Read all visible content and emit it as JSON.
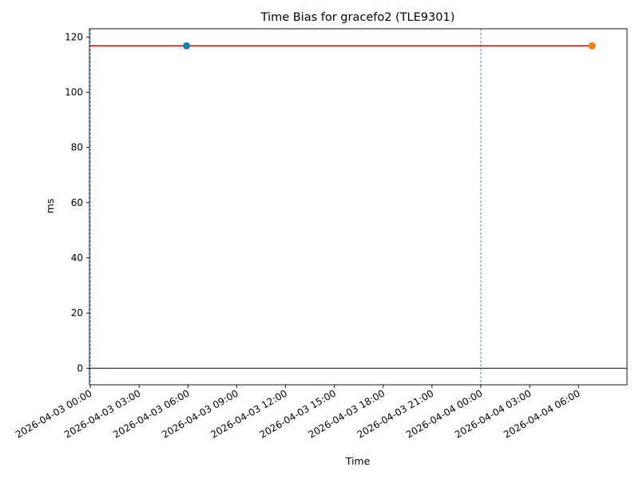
{
  "chart_data": {
    "type": "line",
    "title": "Time Bias for gracefo2 (TLE9301)",
    "xlabel": "Time",
    "ylabel": "ms",
    "xlim": [
      "2026-04-02 23:57",
      "2026-04-04 08:59"
    ],
    "ylim": [
      -6,
      123
    ],
    "x_ticks": [
      "2026-04-03 00:00",
      "2026-04-03 03:00",
      "2026-04-03 06:00",
      "2026-04-03 09:00",
      "2026-04-03 12:00",
      "2026-04-03 15:00",
      "2026-04-03 18:00",
      "2026-04-03 21:00",
      "2026-04-04 00:00",
      "2026-04-04 03:00",
      "2026-04-04 06:00"
    ],
    "y_ticks": [
      0,
      20,
      40,
      60,
      80,
      100,
      120
    ],
    "series": [
      {
        "color": "#cc0000",
        "style": "line",
        "x": [
          "2026-04-03 00:00",
          "2026-04-04 06:50"
        ],
        "values": [
          116.8,
          116.8
        ]
      }
    ],
    "points": [
      {
        "x": "2026-04-03 05:55",
        "y": 116.8,
        "color": "#1f77b4"
      },
      {
        "x": "2026-04-04 06:50",
        "y": 116.8,
        "color": "#ff7f0e"
      }
    ],
    "vertical_lines": [
      {
        "x": "2026-04-03 00:00",
        "color": "#1f77b4",
        "style": "dashed"
      },
      {
        "x": "2026-04-04 00:00",
        "color": "#1f77b4",
        "style": "dashed"
      }
    ],
    "horizontal_lines": [
      {
        "y": 0,
        "color": "#000000"
      }
    ],
    "grid": false,
    "legend": "none"
  }
}
